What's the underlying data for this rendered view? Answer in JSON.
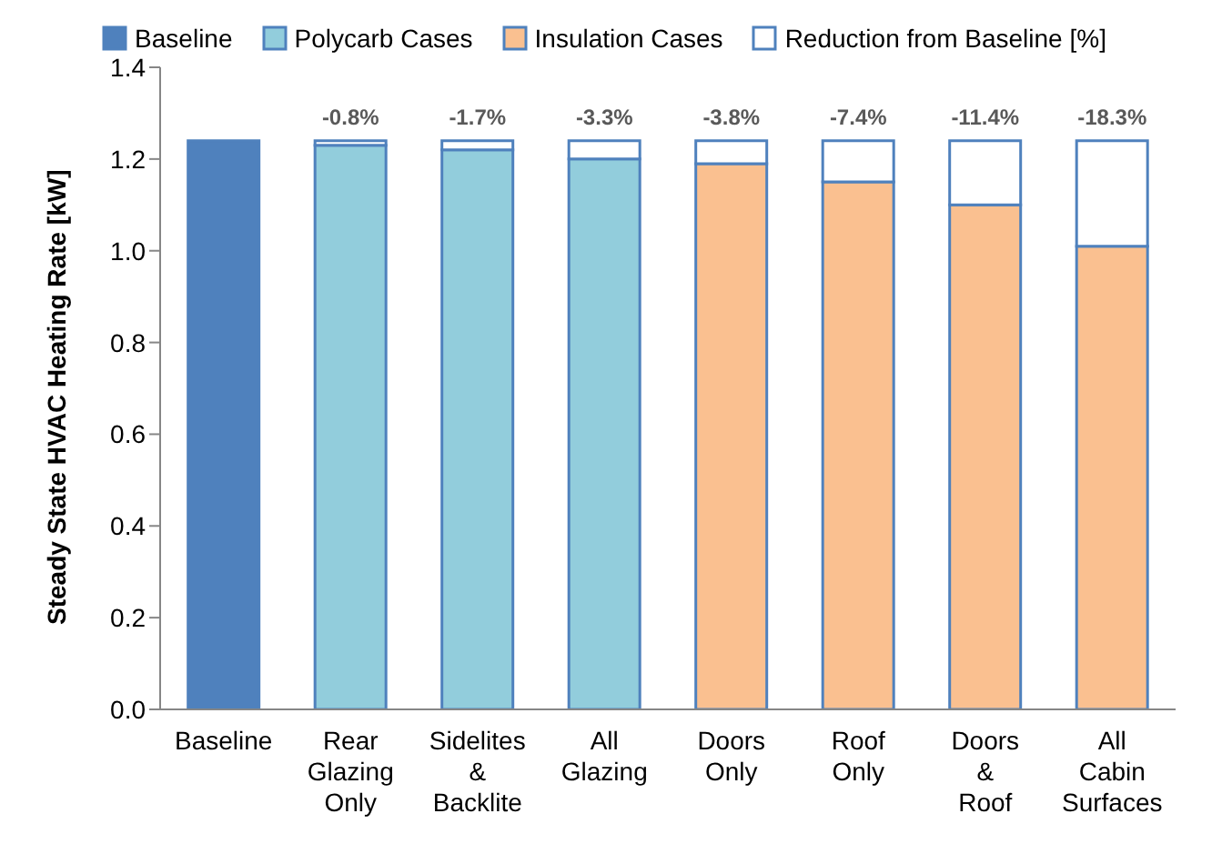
{
  "chart_data": {
    "type": "bar",
    "stacked": true,
    "ylabel": "Steady State HVAC Heating Rate [kW]",
    "categories": [
      "Baseline",
      "Rear Glazing Only",
      "Sidelites & Backlite",
      "All Glazing",
      "Doors Only",
      "Roof Only",
      "Doors & Roof",
      "All Cabin Surfaces"
    ],
    "series": [
      {
        "name": "Baseline",
        "color": "#4f81bd",
        "values": [
          1.24,
          null,
          null,
          null,
          null,
          null,
          null,
          null
        ]
      },
      {
        "name": "Polycarb Cases",
        "color": "#92cddc",
        "values": [
          null,
          1.23,
          1.22,
          1.2,
          null,
          null,
          null,
          null
        ]
      },
      {
        "name": "Insulation Cases",
        "color": "#fac090",
        "values": [
          null,
          null,
          null,
          null,
          1.19,
          1.15,
          1.1,
          1.01
        ]
      },
      {
        "name": "Reduction from Baseline [%]",
        "color": "#ffffff",
        "values": [
          null,
          0.01,
          0.02,
          0.04,
          0.05,
          0.09,
          0.14,
          0.23
        ]
      }
    ],
    "annotations": [
      {
        "text": "-0.8%",
        "x": "Rear Glazing Only",
        "y": 1.24
      },
      {
        "text": "-1.7%",
        "x": "Sidelites & Backlite",
        "y": 1.24
      },
      {
        "text": "-3.3%",
        "x": "All Glazing",
        "y": 1.24
      },
      {
        "text": "-3.8%",
        "x": "Doors Only",
        "y": 1.24
      },
      {
        "text": "-7.4%",
        "x": "Roof Only",
        "y": 1.24
      },
      {
        "text": "-11.4%",
        "x": "Doors & Roof",
        "y": 1.24
      },
      {
        "text": "-18.3%",
        "x": "All Cabin Surfaces",
        "y": 1.24
      }
    ],
    "ylim": [
      0,
      1.4
    ],
    "yticks": [
      {
        "value": 0,
        "label": "0.0"
      },
      {
        "value": 0.2,
        "label": "0.2"
      },
      {
        "value": 0.4,
        "label": "0.4"
      },
      {
        "value": 0.6,
        "label": "0.6"
      },
      {
        "value": 0.8,
        "label": "0.8"
      },
      {
        "value": 1,
        "label": "1.0"
      },
      {
        "value": 1.2,
        "label": "1.2"
      },
      {
        "value": 1.4,
        "label": "1.4"
      }
    ],
    "legend": "top"
  }
}
